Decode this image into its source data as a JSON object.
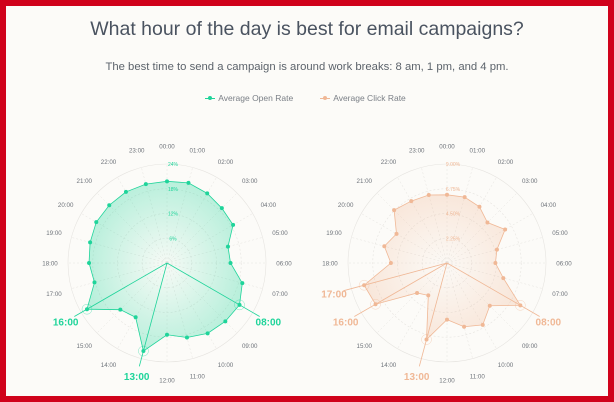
{
  "title": "What hour of the day is best for email campaigns?",
  "subtitle": "The best time to send a campaign is around work breaks: 8 am, 1 pm, and 4 pm.",
  "legend": [
    {
      "label": "Average Open Rate",
      "color": "#1fd49a"
    },
    {
      "label": "Average Click Rate",
      "color": "#f0b896"
    }
  ],
  "border_color": "#d0021b",
  "chart_data": [
    {
      "type": "radar",
      "series": [
        {
          "name": "Average Open Rate",
          "color": "#1fd49a",
          "values": [
            19.8,
            20.1,
            19.5,
            18.8,
            18.5,
            15.3,
            15.4,
            18.9,
            20.3,
            20.0,
            19.7,
            18.7,
            17.4,
            22.1,
            15.2,
            16.0,
            22.4,
            18.2,
            18.9,
            19.3,
            19.8,
            19.8,
            19.9,
            19.8
          ]
        }
      ],
      "categories": [
        "00:00",
        "01:00",
        "02:00",
        "03:00",
        "04:00",
        "05:00",
        "06:00",
        "07:00",
        "08:00",
        "09:00",
        "10:00",
        "11:00",
        "12:00",
        "13:00",
        "14:00",
        "15:00",
        "16:00",
        "17:00",
        "18:00",
        "19:00",
        "20:00",
        "21:00",
        "22:00",
        "23:00"
      ],
      "radial_ticks": [
        "6%",
        "12%",
        "18%",
        "24%"
      ],
      "rlim": [
        0,
        24
      ],
      "highlights": [
        "08:00",
        "13:00",
        "16:00"
      ]
    },
    {
      "type": "radar",
      "series": [
        {
          "name": "Average Click Rate",
          "color": "#f0b896",
          "values": [
            6.2,
            6.2,
            5.9,
            5.2,
            6.1,
            4.7,
            4.4,
            5.3,
            7.7,
            5.5,
            6.5,
            6.0,
            5.15,
            7.2,
            3.4,
            3.85,
            7.5,
            7.8,
            5.1,
            5.9,
            5.3,
            6.8,
            6.5,
            6.4
          ]
        }
      ],
      "categories": [
        "00:00",
        "01:00",
        "02:00",
        "03:00",
        "04:00",
        "05:00",
        "06:00",
        "07:00",
        "08:00",
        "09:00",
        "10:00",
        "11:00",
        "12:00",
        "13:00",
        "14:00",
        "15:00",
        "16:00",
        "17:00",
        "18:00",
        "19:00",
        "20:00",
        "21:00",
        "22:00",
        "23:00"
      ],
      "radial_ticks": [
        "2.25%",
        "4.50%",
        "6.75%",
        "9.00%"
      ],
      "rlim": [
        0,
        9
      ],
      "highlights": [
        "08:00",
        "13:00",
        "16:00",
        "17:00"
      ]
    }
  ]
}
